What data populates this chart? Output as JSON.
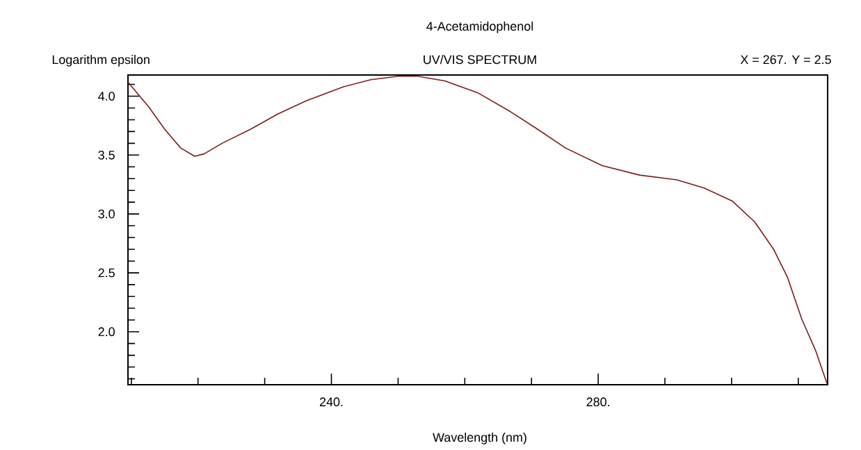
{
  "chart_data": {
    "type": "line",
    "title": "4-Acetamidophenol",
    "subtitle": "UV/VIS SPECTRUM",
    "ylabel": "Logarithm epsilon",
    "xlabel": "Wavelength (nm)",
    "annotations": [
      "X = 267.   Y = 2.5"
    ],
    "x": [
      209.5,
      212.6,
      215.0,
      217.4,
      219.5,
      220.9,
      223.6,
      227.9,
      232.0,
      236.2,
      241.8,
      245.9,
      250.1,
      252.9,
      257.0,
      261.9,
      266.8,
      270.9,
      275.1,
      280.6,
      286.2,
      291.8,
      295.9,
      300.1,
      303.5,
      306.3,
      308.4,
      310.5,
      312.6,
      314.3
    ],
    "values": [
      4.12,
      3.91,
      3.72,
      3.56,
      3.49,
      3.51,
      3.6,
      3.72,
      3.85,
      3.96,
      4.08,
      4.14,
      4.17,
      4.17,
      4.13,
      4.03,
      3.87,
      3.72,
      3.56,
      3.41,
      3.33,
      3.29,
      3.22,
      3.11,
      2.93,
      2.7,
      2.46,
      2.11,
      1.84,
      1.56
    ],
    "color": "#7f1a1a",
    "xlim": [
      209.5,
      314.4
    ],
    "ylim": [
      1.55,
      4.18
    ],
    "xticks": [
      {
        "value": 210,
        "label": null
      },
      {
        "value": 220,
        "label": null
      },
      {
        "value": 230,
        "label": null
      },
      {
        "value": 240,
        "label": "240."
      },
      {
        "value": 250,
        "label": null
      },
      {
        "value": 260,
        "label": null
      },
      {
        "value": 270,
        "label": null
      },
      {
        "value": 280,
        "label": "280."
      },
      {
        "value": 290,
        "label": null
      },
      {
        "value": 300,
        "label": null
      },
      {
        "value": 310,
        "label": null
      }
    ],
    "yticks": [
      {
        "value": 1.6,
        "label": null
      },
      {
        "value": 1.7,
        "label": null
      },
      {
        "value": 1.8,
        "label": null
      },
      {
        "value": 1.9,
        "label": null
      },
      {
        "value": 2.0,
        "label": "2.0"
      },
      {
        "value": 2.1,
        "label": null
      },
      {
        "value": 2.2,
        "label": null
      },
      {
        "value": 2.3,
        "label": null
      },
      {
        "value": 2.4,
        "label": null
      },
      {
        "value": 2.5,
        "label": "2.5"
      },
      {
        "value": 2.6,
        "label": null
      },
      {
        "value": 2.7,
        "label": null
      },
      {
        "value": 2.8,
        "label": null
      },
      {
        "value": 2.9,
        "label": null
      },
      {
        "value": 3.0,
        "label": "3.0"
      },
      {
        "value": 3.1,
        "label": null
      },
      {
        "value": 3.2,
        "label": null
      },
      {
        "value": 3.3,
        "label": null
      },
      {
        "value": 3.4,
        "label": null
      },
      {
        "value": 3.5,
        "label": "3.5"
      },
      {
        "value": 3.6,
        "label": null
      },
      {
        "value": 3.7,
        "label": null
      },
      {
        "value": 3.8,
        "label": null
      },
      {
        "value": 3.9,
        "label": null
      },
      {
        "value": 4.0,
        "label": "4.0"
      },
      {
        "value": 4.1,
        "label": null
      }
    ],
    "grid": false,
    "marker": "none",
    "line_style": "solid"
  }
}
